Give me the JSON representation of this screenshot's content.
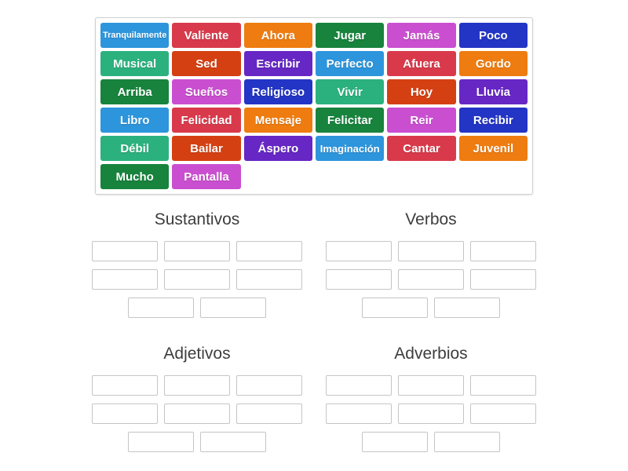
{
  "palette": {
    "light_blue": "#2d95dc",
    "crimson": "#d93a4b",
    "orange": "#ee7c10",
    "dark_green": "#17833d",
    "orchid": "#ca4fd0",
    "dark_blue": "#2335c5",
    "sea_green": "#2bb17e",
    "vermilion": "#d54012",
    "purple": "#6627c5",
    "tile_text": "#ffffff",
    "header_text": "#3d3d3d",
    "slot_border": "#c5c5c5",
    "pool_border": "#cfcfcf"
  },
  "pool": {
    "tiles": [
      {
        "label": "Tranquilamente",
        "color": "light_blue"
      },
      {
        "label": "Valiente",
        "color": "crimson"
      },
      {
        "label": "Ahora",
        "color": "orange"
      },
      {
        "label": "Jugar",
        "color": "dark_green"
      },
      {
        "label": "Jamás",
        "color": "orchid"
      },
      {
        "label": "Poco",
        "color": "dark_blue"
      },
      {
        "label": "Musical",
        "color": "sea_green"
      },
      {
        "label": "Sed",
        "color": "vermilion"
      },
      {
        "label": "Escribir",
        "color": "purple"
      },
      {
        "label": "Perfecto",
        "color": "light_blue"
      },
      {
        "label": "Afuera",
        "color": "crimson"
      },
      {
        "label": "Gordo",
        "color": "orange"
      },
      {
        "label": "Arriba",
        "color": "dark_green"
      },
      {
        "label": "Sueños",
        "color": "orchid"
      },
      {
        "label": "Religioso",
        "color": "dark_blue"
      },
      {
        "label": "Vivir",
        "color": "sea_green"
      },
      {
        "label": "Hoy",
        "color": "vermilion"
      },
      {
        "label": "Lluvia",
        "color": "purple"
      },
      {
        "label": "Libro",
        "color": "light_blue"
      },
      {
        "label": "Felicidad",
        "color": "crimson"
      },
      {
        "label": "Mensaje",
        "color": "orange"
      },
      {
        "label": "Felicitar",
        "color": "dark_green"
      },
      {
        "label": "Reir",
        "color": "orchid"
      },
      {
        "label": "Recibir",
        "color": "dark_blue"
      },
      {
        "label": "Débil",
        "color": "sea_green"
      },
      {
        "label": "Bailar",
        "color": "vermilion"
      },
      {
        "label": "Áspero",
        "color": "purple"
      },
      {
        "label": "Imaginación",
        "color": "light_blue"
      },
      {
        "label": "Cantar",
        "color": "crimson"
      },
      {
        "label": "Juvenil",
        "color": "orange"
      },
      {
        "label": "Mucho",
        "color": "dark_green"
      },
      {
        "label": "Pantalla",
        "color": "orchid"
      }
    ]
  },
  "groups": [
    {
      "title": "Sustantivos",
      "slot_rows": [
        3,
        3,
        2
      ]
    },
    {
      "title": "Verbos",
      "slot_rows": [
        3,
        3,
        2
      ]
    },
    {
      "title": "Adjetivos",
      "slot_rows": [
        3,
        3,
        2
      ]
    },
    {
      "title": "Adverbios",
      "slot_rows": [
        3,
        3,
        2
      ]
    }
  ]
}
